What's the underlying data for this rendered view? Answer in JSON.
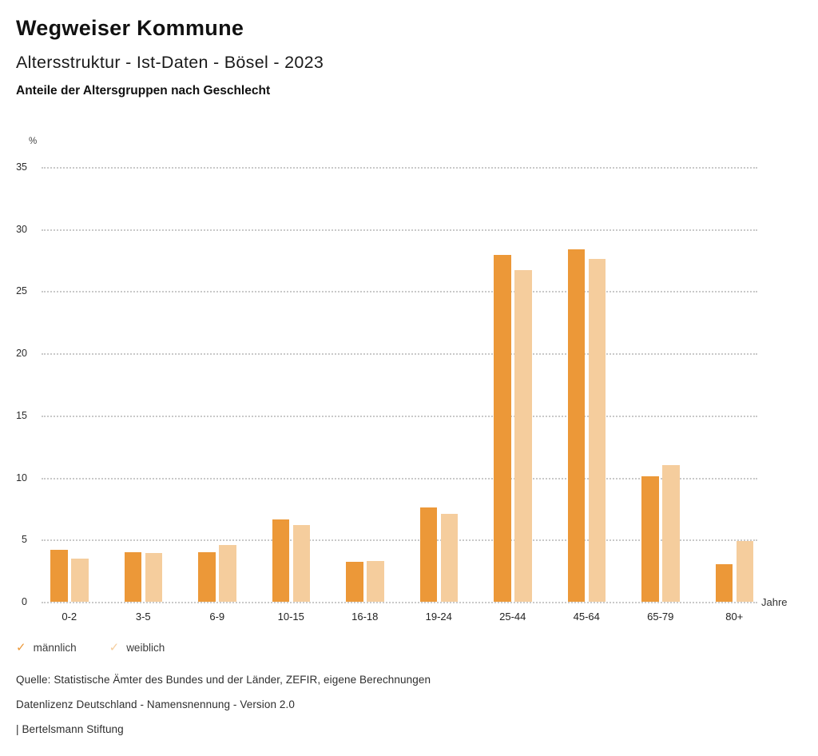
{
  "header": {
    "title": "Wegweiser Kommune",
    "subtitle": "Altersstruktur - Ist-Daten - Bösel - 2023",
    "section_title": "Anteile der Altersgruppen nach Geschlecht"
  },
  "chart_data": {
    "type": "bar",
    "title": "Anteile der Altersgruppen nach Geschlecht",
    "categories": [
      "0-2",
      "3-5",
      "6-9",
      "10-15",
      "16-18",
      "19-24",
      "25-44",
      "45-64",
      "65-79",
      "80+"
    ],
    "series": [
      {
        "id": "maennlich",
        "name": "männlich",
        "color": "#EC9838",
        "values": [
          4.2,
          4.0,
          4.0,
          6.6,
          3.2,
          7.6,
          27.9,
          28.4,
          10.1,
          3.0
        ]
      },
      {
        "id": "weiblich",
        "name": "weiblich",
        "color": "#F5CD9D",
        "values": [
          3.5,
          3.9,
          4.6,
          6.2,
          3.3,
          7.1,
          26.7,
          27.6,
          11.0,
          4.9
        ]
      }
    ],
    "ylabel": "%",
    "xlabel": "Jahre",
    "ylim": [
      0,
      35
    ],
    "ytick_step": 5,
    "grid": "horizontal-dotted",
    "legend_position": "bottom-left",
    "gridline_color": "#c9c9c9"
  },
  "axes": {
    "y_unit_label": "%",
    "x_unit_label": "Jahre"
  },
  "legend": {
    "items": [
      {
        "label": "männlich",
        "marker": "check",
        "color": "#EC9838"
      },
      {
        "label": "weiblich",
        "marker": "check",
        "color": "#F5CD9D"
      }
    ]
  },
  "footer": {
    "source": "Quelle: Statistische Ämter des Bundes und der Länder, ZEFIR, eigene Berechnungen",
    "license": "Datenlizenz Deutschland - Namensnennung - Version 2.0",
    "attribution": "| Bertelsmann Stiftung"
  }
}
